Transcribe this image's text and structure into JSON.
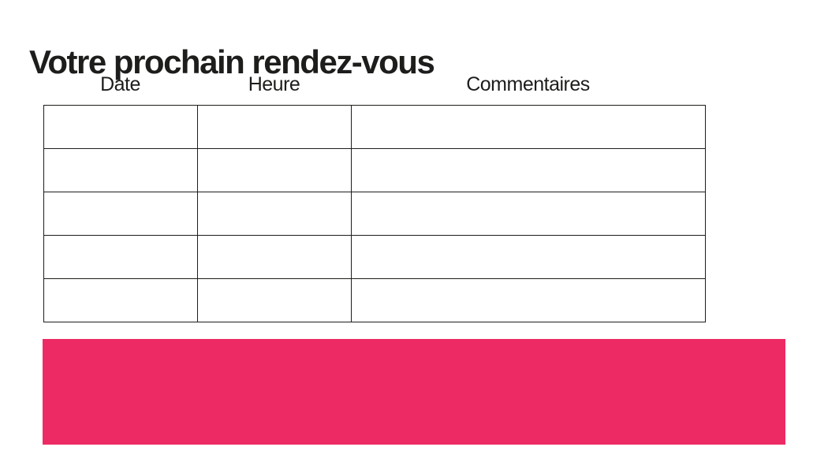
{
  "page": {
    "title": "Votre prochain rendez-vous"
  },
  "table": {
    "columns": [
      {
        "label": "Date"
      },
      {
        "label": "Heure"
      },
      {
        "label": "Commentaires"
      }
    ],
    "row_count": 5,
    "rows": [
      [
        "",
        "",
        ""
      ],
      [
        "",
        "",
        ""
      ],
      [
        "",
        "",
        ""
      ],
      [
        "",
        "",
        ""
      ],
      [
        "",
        "",
        ""
      ]
    ]
  },
  "banner": {
    "text": ""
  },
  "colors": {
    "accent_pink": "#ED2A64",
    "text": "#1d1d1b",
    "table_border": "#1d1d1b",
    "background": "#ffffff"
  }
}
